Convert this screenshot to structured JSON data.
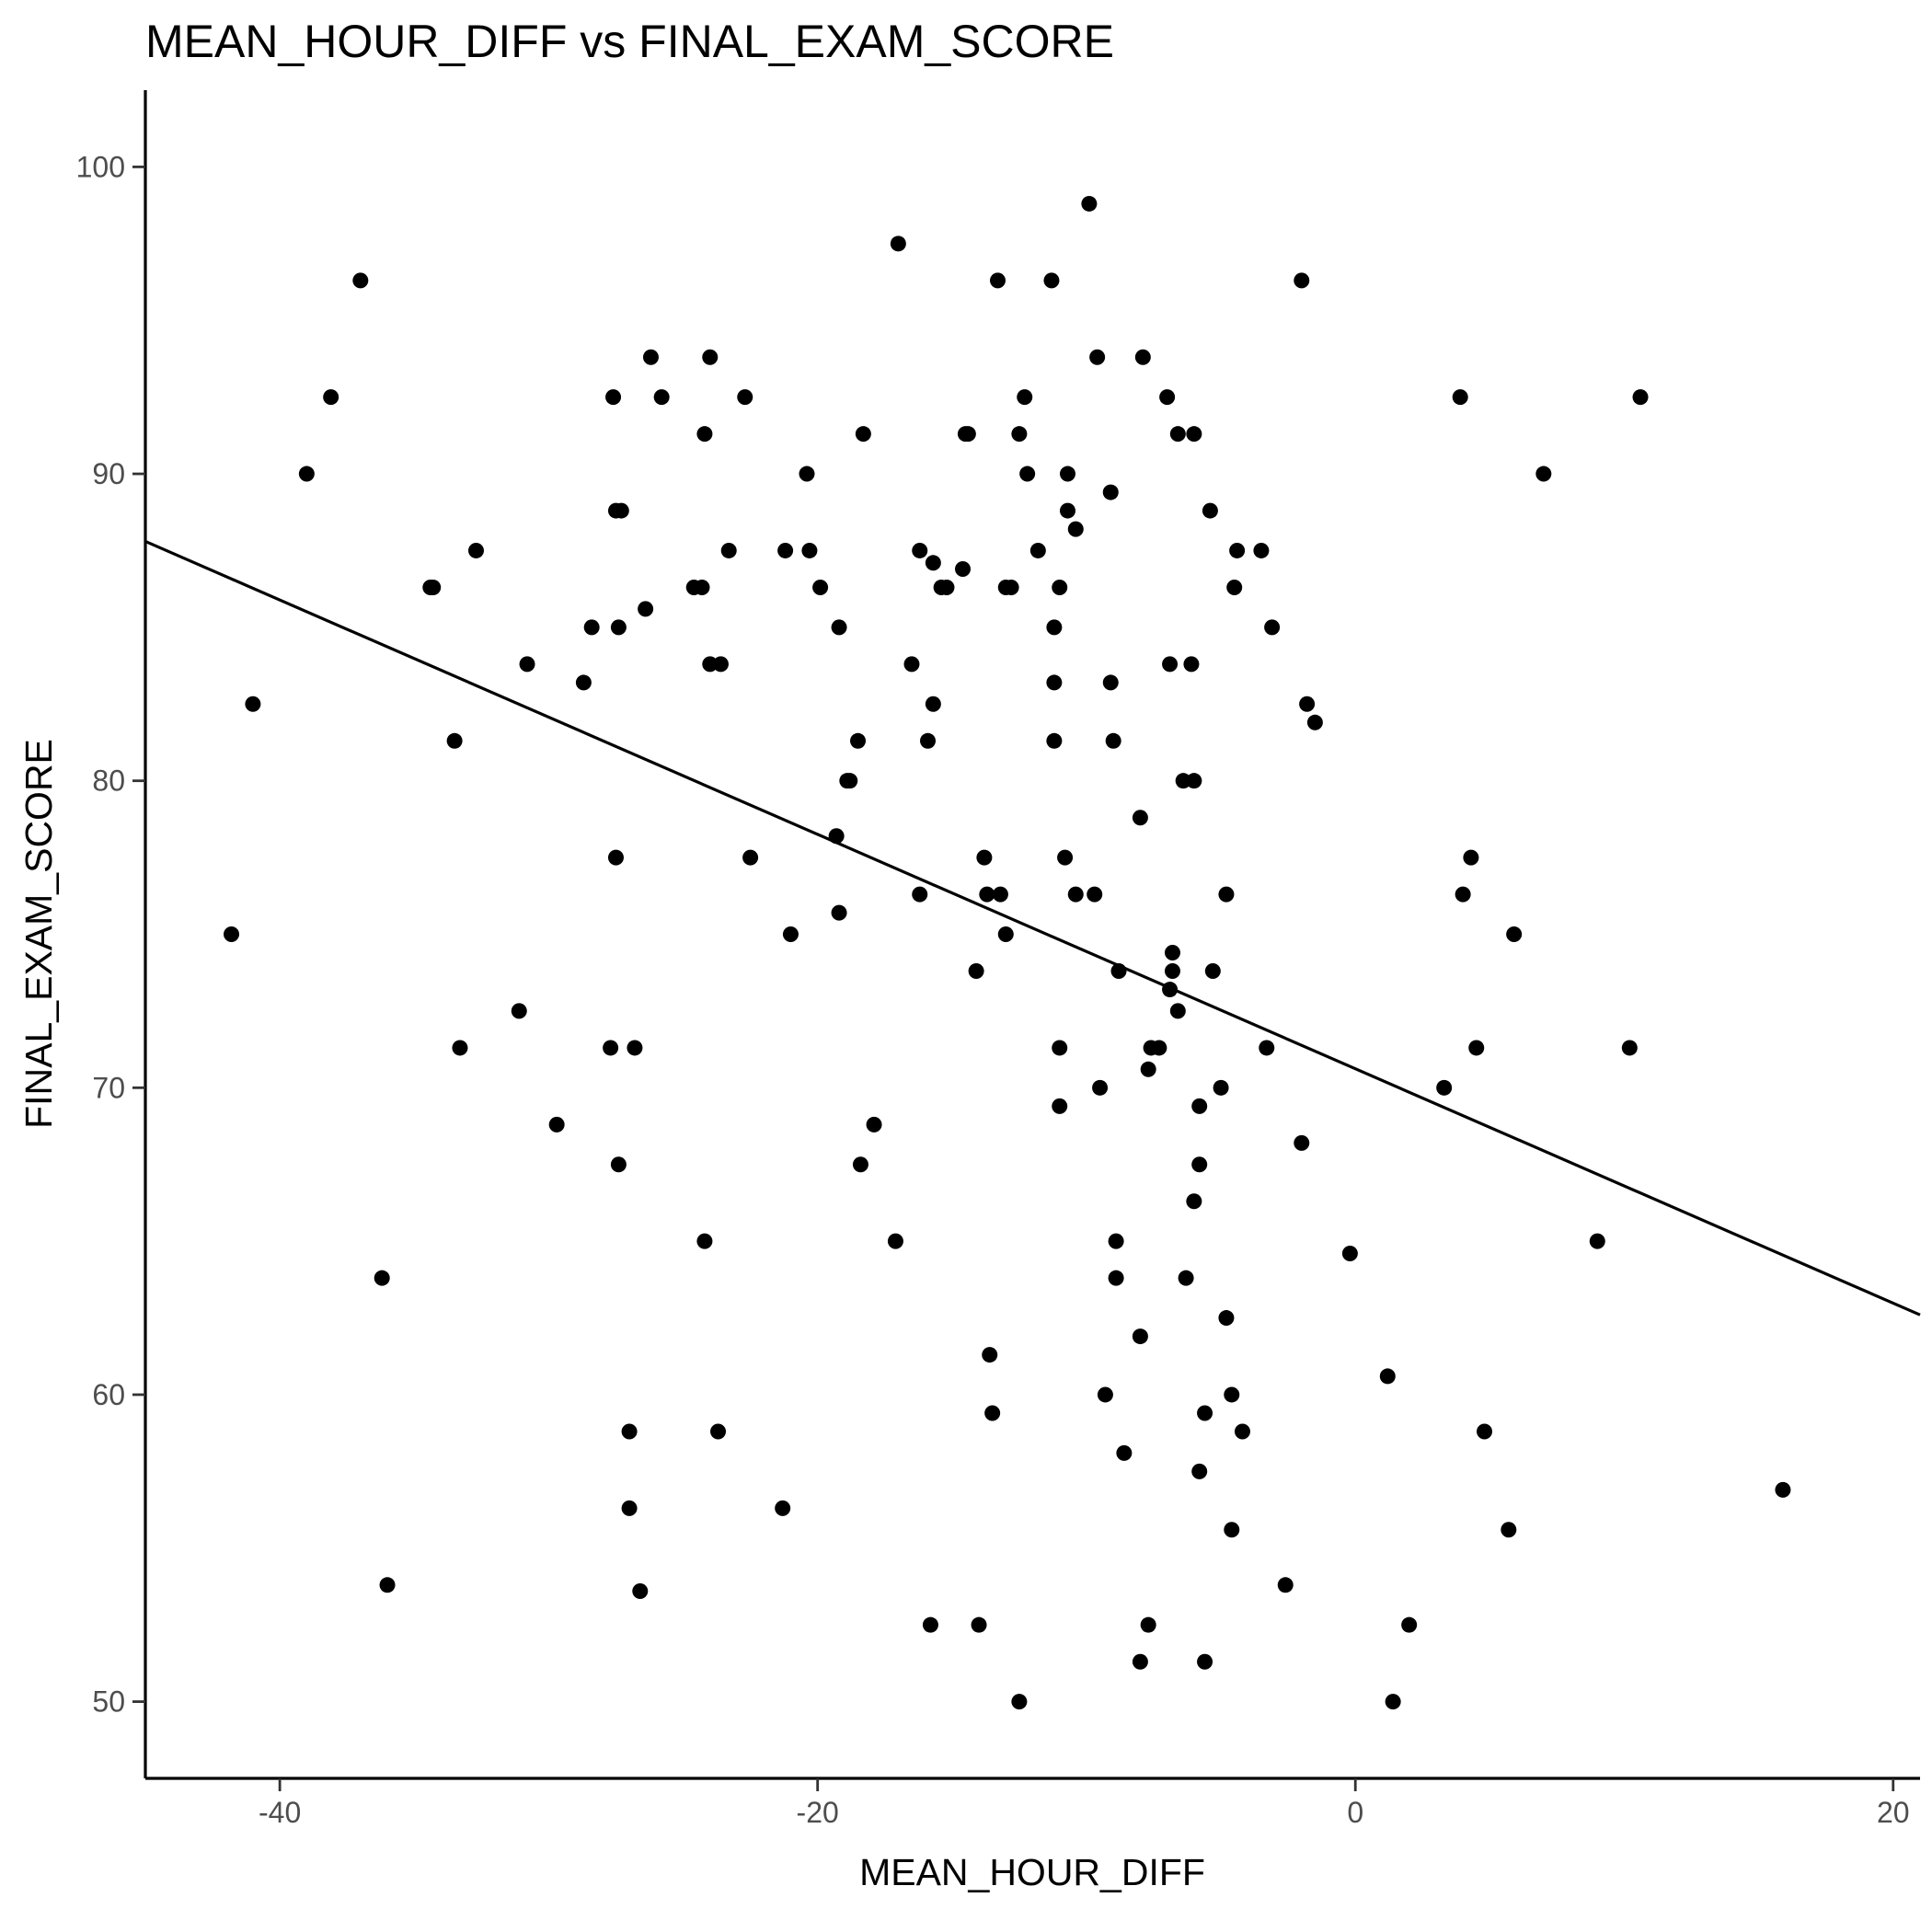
{
  "chart_data": {
    "type": "scatter",
    "title": "MEAN_HOUR_DIFF vs FINAL_EXAM_SCORE",
    "xlabel": "MEAN_HOUR_DIFF",
    "ylabel": "FINAL_EXAM_SCORE",
    "xlim": [
      -45,
      21
    ],
    "ylim": [
      47.5,
      102.5
    ],
    "x_ticks": [
      -40,
      -20,
      0,
      20
    ],
    "y_ticks": [
      50,
      60,
      70,
      80,
      90,
      100
    ],
    "grid": false,
    "legend": "none",
    "point_color": "#000000",
    "trend_line": {
      "type": "linear fit",
      "points": [
        [
          -45,
          87.8
        ],
        [
          21,
          62.6
        ]
      ]
    },
    "points": [
      [
        -41.8,
        75.0
      ],
      [
        -41.0,
        82.5
      ],
      [
        -39.0,
        90.0
      ],
      [
        -38.1,
        92.5
      ],
      [
        -37.0,
        96.3
      ],
      [
        -36.2,
        63.8
      ],
      [
        -36.0,
        53.8
      ],
      [
        -34.4,
        86.3
      ],
      [
        -34.3,
        86.3
      ],
      [
        -33.5,
        81.3
      ],
      [
        -33.3,
        71.3
      ],
      [
        -32.7,
        87.5
      ],
      [
        -31.1,
        72.5
      ],
      [
        -30.8,
        83.8
      ],
      [
        -29.7,
        68.8
      ],
      [
        -28.7,
        83.2
      ],
      [
        -28.4,
        85.0
      ],
      [
        -27.6,
        92.5
      ],
      [
        -27.5,
        88.8
      ],
      [
        -27.3,
        88.8
      ],
      [
        -27.5,
        77.5
      ],
      [
        -27.7,
        71.3
      ],
      [
        -27.4,
        67.5
      ],
      [
        -27.4,
        85.0
      ],
      [
        -27.0,
        58.8
      ],
      [
        -27.0,
        56.3
      ],
      [
        -26.8,
        71.3
      ],
      [
        -26.6,
        53.6
      ],
      [
        -26.4,
        85.6
      ],
      [
        -26.2,
        93.8
      ],
      [
        -25.8,
        92.5
      ],
      [
        -24.6,
        86.3
      ],
      [
        -24.3,
        86.3
      ],
      [
        -24.2,
        65.0
      ],
      [
        -24.2,
        91.3
      ],
      [
        -24.0,
        93.8
      ],
      [
        -24.0,
        83.8
      ],
      [
        -23.6,
        83.8
      ],
      [
        -23.7,
        58.8
      ],
      [
        -23.3,
        87.5
      ],
      [
        -22.7,
        92.5
      ],
      [
        -22.5,
        77.5
      ],
      [
        -21.3,
        56.3
      ],
      [
        -21.2,
        87.5
      ],
      [
        -21.0,
        75.0
      ],
      [
        -20.4,
        90.0
      ],
      [
        -20.3,
        87.5
      ],
      [
        -19.9,
        86.3
      ],
      [
        -19.3,
        78.2
      ],
      [
        -19.2,
        85.0
      ],
      [
        -19.2,
        75.7
      ],
      [
        -18.9,
        80.0
      ],
      [
        -18.8,
        80.0
      ],
      [
        -18.5,
        81.3
      ],
      [
        -18.4,
        67.5
      ],
      [
        -18.3,
        91.3
      ],
      [
        -17.9,
        68.8
      ],
      [
        -17.1,
        65.0
      ],
      [
        -17.0,
        97.5
      ],
      [
        -16.5,
        83.8
      ],
      [
        -16.2,
        87.5
      ],
      [
        -16.2,
        76.3
      ],
      [
        -15.9,
        81.3
      ],
      [
        -15.8,
        52.5
      ],
      [
        -15.7,
        82.5
      ],
      [
        -15.7,
        87.1
      ],
      [
        -15.4,
        86.3
      ],
      [
        -15.2,
        86.3
      ],
      [
        -14.6,
        86.9
      ],
      [
        -14.5,
        91.3
      ],
      [
        -14.4,
        91.3
      ],
      [
        -14.1,
        73.8
      ],
      [
        -14.0,
        52.5
      ],
      [
        -13.8,
        77.5
      ],
      [
        -13.7,
        76.3
      ],
      [
        -13.6,
        61.3
      ],
      [
        -13.5,
        59.4
      ],
      [
        -13.3,
        96.3
      ],
      [
        -13.2,
        76.3
      ],
      [
        -13.0,
        75.0
      ],
      [
        -13.0,
        86.3
      ],
      [
        -12.8,
        86.3
      ],
      [
        -12.5,
        91.3
      ],
      [
        -12.5,
        50.0
      ],
      [
        -12.3,
        92.5
      ],
      [
        -12.2,
        90.0
      ],
      [
        -11.8,
        87.5
      ],
      [
        -11.3,
        96.3
      ],
      [
        -11.2,
        85.0
      ],
      [
        -11.2,
        83.2
      ],
      [
        -11.2,
        81.3
      ],
      [
        -11.0,
        86.3
      ],
      [
        -11.0,
        71.3
      ],
      [
        -11.0,
        69.4
      ],
      [
        -10.8,
        77.5
      ],
      [
        -10.7,
        88.8
      ],
      [
        -10.7,
        90.0
      ],
      [
        -10.4,
        88.2
      ],
      [
        -10.4,
        76.3
      ],
      [
        -9.9,
        98.8
      ],
      [
        -9.7,
        76.3
      ],
      [
        -9.6,
        93.8
      ],
      [
        -9.5,
        70.0
      ],
      [
        -9.3,
        60.0
      ],
      [
        -9.1,
        89.4
      ],
      [
        -9.1,
        83.2
      ],
      [
        -9.0,
        81.3
      ],
      [
        -8.9,
        65.0
      ],
      [
        -8.9,
        63.8
      ],
      [
        -8.8,
        73.8
      ],
      [
        -8.6,
        58.1
      ],
      [
        -8.0,
        78.8
      ],
      [
        -8.0,
        61.9
      ],
      [
        -7.9,
        93.8
      ],
      [
        -8.0,
        51.3
      ],
      [
        -7.7,
        52.5
      ],
      [
        -7.7,
        70.6
      ],
      [
        -7.6,
        71.3
      ],
      [
        -7.3,
        71.3
      ],
      [
        -7.0,
        92.5
      ],
      [
        -6.9,
        83.8
      ],
      [
        -6.9,
        73.2
      ],
      [
        -6.8,
        74.4
      ],
      [
        -6.8,
        73.8
      ],
      [
        -6.6,
        91.3
      ],
      [
        -6.6,
        72.5
      ],
      [
        -6.4,
        80.0
      ],
      [
        -6.3,
        63.8
      ],
      [
        -6.1,
        83.8
      ],
      [
        -6.0,
        91.3
      ],
      [
        -6.0,
        80.0
      ],
      [
        -6.0,
        66.3
      ],
      [
        -5.8,
        69.4
      ],
      [
        -5.8,
        67.5
      ],
      [
        -5.8,
        57.5
      ],
      [
        -5.6,
        51.3
      ],
      [
        -5.6,
        59.4
      ],
      [
        -5.4,
        88.8
      ],
      [
        -5.3,
        73.8
      ],
      [
        -5.0,
        70.0
      ],
      [
        -4.8,
        76.3
      ],
      [
        -4.8,
        62.5
      ],
      [
        -4.6,
        55.6
      ],
      [
        -4.6,
        60.0
      ],
      [
        -4.5,
        86.3
      ],
      [
        -4.4,
        87.5
      ],
      [
        -4.2,
        58.8
      ],
      [
        -3.5,
        87.5
      ],
      [
        -3.3,
        71.3
      ],
      [
        -3.1,
        85.0
      ],
      [
        -2.6,
        53.8
      ],
      [
        -2.0,
        96.3
      ],
      [
        -2.0,
        68.2
      ],
      [
        -1.8,
        82.5
      ],
      [
        -1.5,
        81.9
      ],
      [
        -0.2,
        64.6
      ],
      [
        1.2,
        60.6
      ],
      [
        1.4,
        50.0
      ],
      [
        2.0,
        52.5
      ],
      [
        3.3,
        70.0
      ],
      [
        3.9,
        92.5
      ],
      [
        4.0,
        76.3
      ],
      [
        4.3,
        77.5
      ],
      [
        4.5,
        71.3
      ],
      [
        4.8,
        58.8
      ],
      [
        5.7,
        55.6
      ],
      [
        5.9,
        75.0
      ],
      [
        7.0,
        90.0
      ],
      [
        9.0,
        65.0
      ],
      [
        10.2,
        71.3
      ],
      [
        10.6,
        92.5
      ],
      [
        15.9,
        56.9
      ]
    ]
  }
}
